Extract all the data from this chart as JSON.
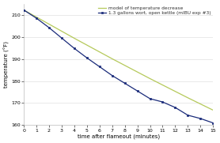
{
  "title": "",
  "xlabel": "time after flameout (minutes)",
  "ylabel": "temperature (°F)",
  "xlim": [
    0,
    15
  ],
  "ylim": [
    160,
    215
  ],
  "yticks": [
    160,
    170,
    180,
    190,
    200,
    210
  ],
  "xticks": [
    0,
    1,
    2,
    3,
    4,
    5,
    6,
    7,
    8,
    9,
    10,
    11,
    12,
    13,
    14,
    15
  ],
  "model_color": "#b5c95a",
  "data_color": "#1a2b7a",
  "legend_model": "model of temperature decrease",
  "legend_data": "1.3 gallons wort, open kettle (mIBU exp #3)",
  "background_color": "#ffffff",
  "model_x": [
    0,
    1,
    2,
    3,
    4,
    5,
    6,
    7,
    8,
    9,
    10,
    11,
    12,
    13,
    14,
    15
  ],
  "model_y": [
    212.2,
    209.0,
    205.8,
    202.6,
    199.4,
    196.3,
    193.2,
    190.1,
    187.1,
    184.1,
    181.1,
    178.2,
    175.3,
    172.4,
    169.6,
    166.8
  ],
  "data_x": [
    0,
    1,
    2,
    3,
    4,
    5,
    6,
    7,
    8,
    9,
    10,
    11,
    12,
    13,
    14,
    15
  ],
  "data_y": [
    212.2,
    208.5,
    204.2,
    199.5,
    194.8,
    190.5,
    186.5,
    182.5,
    179.0,
    175.5,
    172.0,
    170.5,
    168.0,
    164.5,
    163.0,
    161.0
  ]
}
